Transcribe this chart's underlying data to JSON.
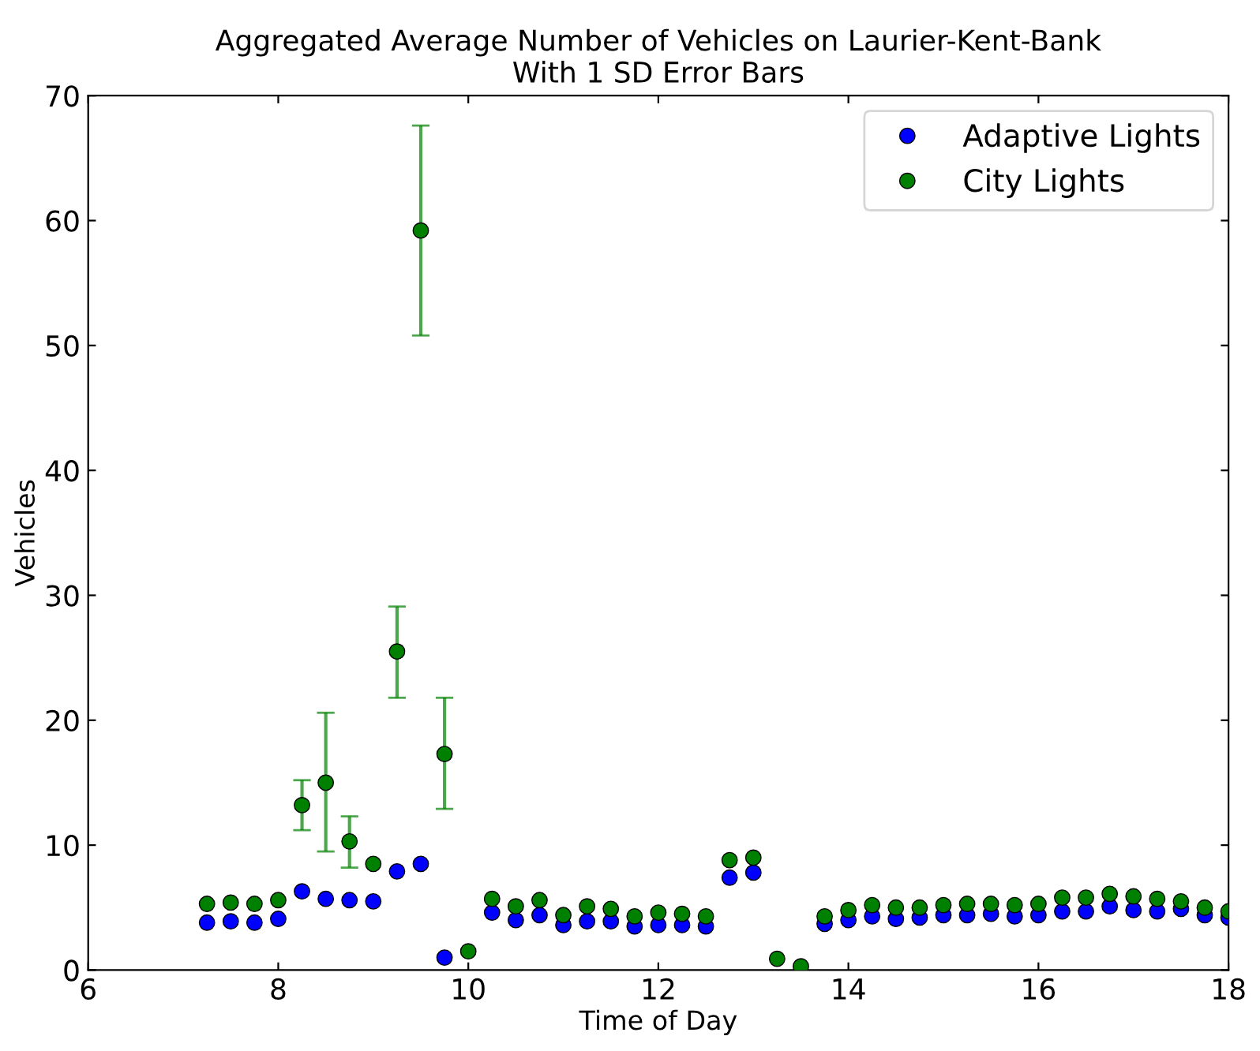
{
  "chart_data": {
    "type": "scatter",
    "title": "Aggregated Average Number of Vehicles on Laurier-Kent-Bank\nWith 1 SD Error Bars",
    "xlabel": "Time of Day",
    "ylabel": "Vehicles",
    "x": [
      7.25,
      7.5,
      7.75,
      8.0,
      8.25,
      8.5,
      8.75,
      9.0,
      9.25,
      9.5,
      9.75,
      10.0,
      10.25,
      10.5,
      10.75,
      11.0,
      11.25,
      11.5,
      11.75,
      12.0,
      12.25,
      12.5,
      12.75,
      13.0,
      13.25,
      13.5,
      13.75,
      14.0,
      14.25,
      14.5,
      14.75,
      15.0,
      15.25,
      15.5,
      15.75,
      16.0,
      16.25,
      16.5,
      16.75,
      17.0,
      17.25,
      17.5,
      17.75,
      18.0
    ],
    "series": [
      {
        "name": "Adaptive Lights",
        "color": "#0000ff",
        "values": [
          3.8,
          3.9,
          3.8,
          4.1,
          6.3,
          5.7,
          5.6,
          5.5,
          7.9,
          8.5,
          1.0,
          null,
          4.6,
          4.0,
          4.4,
          3.6,
          3.9,
          3.9,
          3.5,
          3.6,
          3.6,
          3.5,
          7.4,
          7.8,
          null,
          null,
          3.7,
          4.0,
          4.3,
          4.1,
          4.2,
          4.4,
          4.4,
          4.5,
          4.3,
          4.4,
          4.7,
          4.7,
          5.1,
          4.8,
          4.7,
          4.9,
          4.4,
          4.2
        ]
      },
      {
        "name": "City Lights",
        "color": "#008000",
        "values": [
          5.3,
          5.4,
          5.3,
          5.6,
          13.2,
          15.0,
          10.3,
          8.5,
          25.5,
          59.2,
          17.3,
          1.5,
          5.7,
          5.1,
          5.6,
          4.4,
          5.1,
          4.9,
          4.3,
          4.6,
          4.5,
          4.3,
          8.8,
          9.0,
          0.9,
          0.3,
          4.3,
          4.8,
          5.2,
          5.0,
          5.0,
          5.2,
          5.3,
          5.3,
          5.2,
          5.3,
          5.8,
          5.8,
          6.1,
          5.9,
          5.7,
          5.5,
          5.0,
          4.7
        ],
        "errors": [
          null,
          null,
          null,
          null,
          [
            11.2,
            15.2
          ],
          [
            9.5,
            20.6
          ],
          [
            8.2,
            12.3
          ],
          null,
          [
            21.8,
            29.1
          ],
          [
            50.8,
            67.6
          ],
          [
            12.9,
            21.8
          ],
          null,
          null,
          null,
          null,
          null,
          null,
          null,
          null,
          null,
          null,
          null,
          null,
          null,
          null,
          null,
          null,
          null,
          null,
          null,
          null,
          null,
          null,
          null,
          null,
          null,
          null,
          null,
          null,
          null,
          null,
          null,
          null,
          null
        ]
      }
    ],
    "xlim": [
      6,
      18
    ],
    "xticks": [
      6,
      8,
      10,
      12,
      14,
      16,
      18
    ],
    "ylim": [
      0,
      70
    ],
    "yticks": [
      0,
      10,
      20,
      30,
      40,
      50,
      60,
      70
    ],
    "marker": "circle",
    "grid": false,
    "legend": "top right"
  }
}
